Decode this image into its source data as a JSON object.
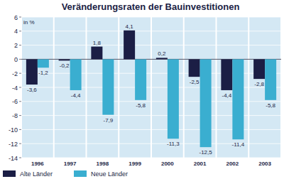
{
  "chart_data": {
    "type": "bar",
    "title": "Veränderungsraten der Bauinvestitionen",
    "y_label": "in %",
    "categories": [
      "1996",
      "1997",
      "1998",
      "1999",
      "2000",
      "2001",
      "2002",
      "2003"
    ],
    "series": [
      {
        "name": "Alte Länder",
        "color": "#1b1e45",
        "values": [
          -3.6,
          -0.2,
          1.8,
          4.1,
          0.2,
          -2.5,
          -4.4,
          -2.8
        ],
        "value_labels": [
          "-3,6",
          "-0,2",
          "1,8",
          "4,1",
          "0,2",
          "-2,5",
          "-4,4",
          "-2,8"
        ]
      },
      {
        "name": "Neue Länder",
        "color": "#3aaed0",
        "values": [
          -1.2,
          -4.4,
          -7.9,
          -5.8,
          -11.3,
          -12.5,
          -11.4,
          -5.8
        ],
        "value_labels": [
          "-1,2",
          "-4,4",
          "-7,9",
          "-5,8",
          "-11,3",
          "-12,5",
          "-11,4",
          "-5,8"
        ]
      }
    ],
    "ylim": [
      -14,
      6
    ],
    "yticks": [
      -14,
      -12,
      -10,
      -8,
      -6,
      -4,
      -2,
      0,
      2,
      4,
      6
    ],
    "grid": true,
    "legend": "bottom",
    "data_labels": true
  }
}
